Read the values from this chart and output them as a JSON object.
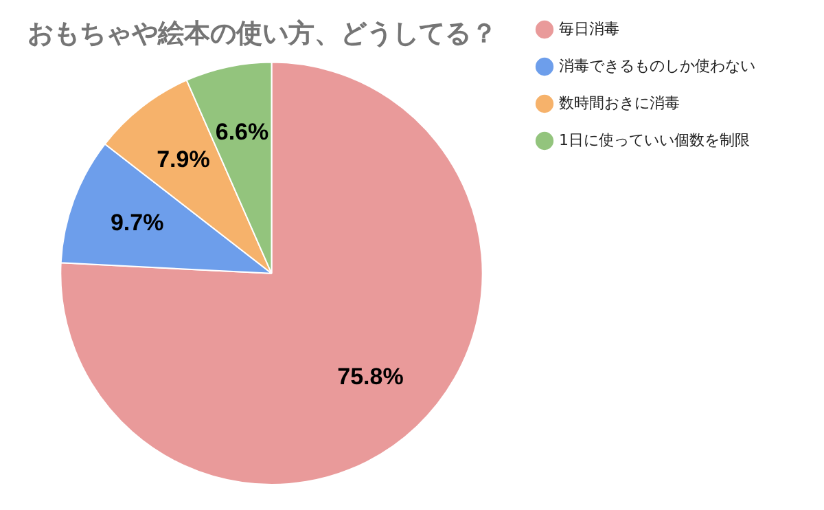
{
  "chart_data": {
    "type": "pie",
    "title": "おもちゃや絵本の使い方、どうしてる？",
    "categories": [
      "毎日消毒",
      "消毒できるものしか使わない",
      "数時間おきに消毒",
      "1日に使っていい個数を制限"
    ],
    "values": [
      75.8,
      9.7,
      7.9,
      6.6
    ],
    "colors": [
      "#e99a9a",
      "#6d9eeb",
      "#f6b26b",
      "#93c47d"
    ],
    "value_labels": [
      "75.8%",
      "9.7%",
      "7.9%",
      "6.6%"
    ],
    "legend": "right",
    "marker": "circle"
  }
}
